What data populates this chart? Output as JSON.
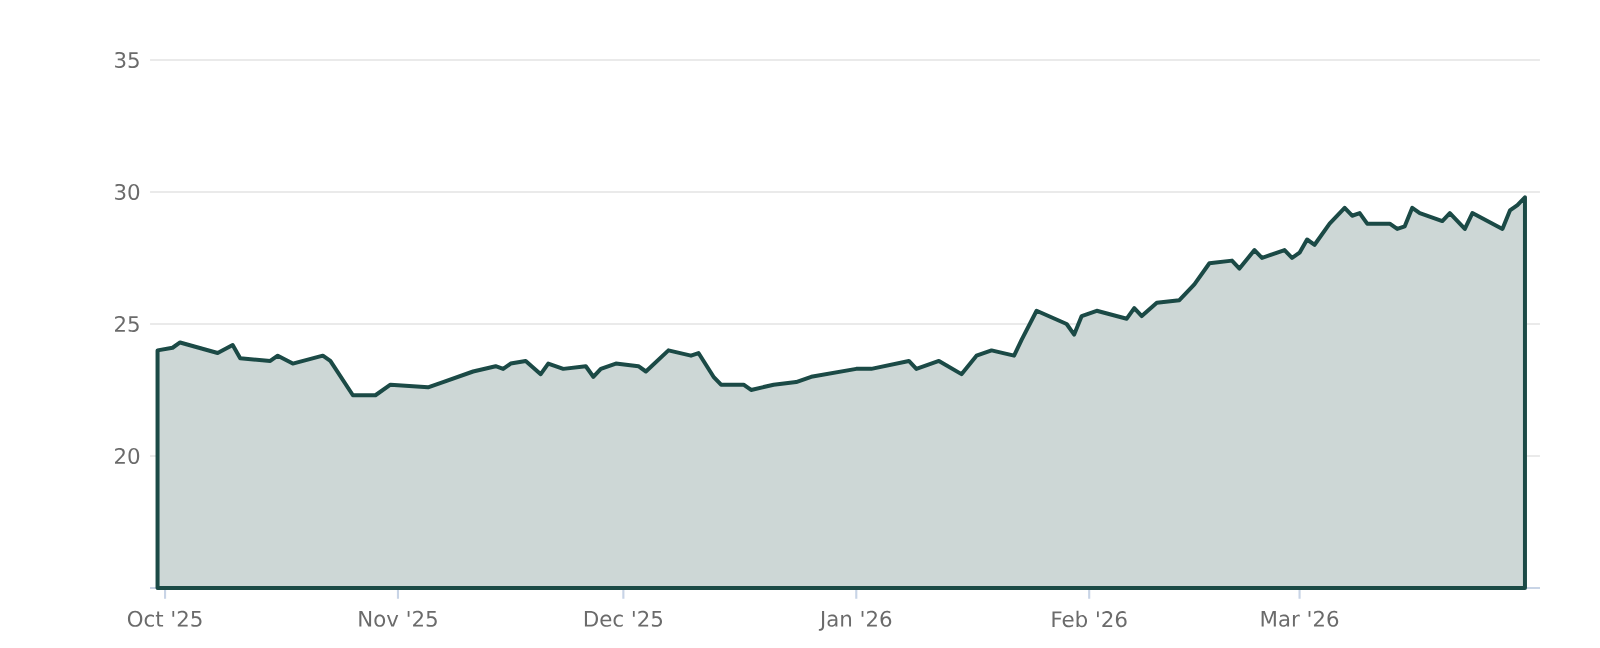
{
  "chart_data": {
    "type": "area",
    "x": [
      "2025-09-30",
      "2025-10-02",
      "2025-10-03",
      "2025-10-08",
      "2025-10-10",
      "2025-10-11",
      "2025-10-15",
      "2025-10-16",
      "2025-10-18",
      "2025-10-22",
      "2025-10-23",
      "2025-10-26",
      "2025-10-29",
      "2025-10-31",
      "2025-11-05",
      "2025-11-07",
      "2025-11-11",
      "2025-11-14",
      "2025-11-15",
      "2025-11-16",
      "2025-11-18",
      "2025-11-20",
      "2025-11-21",
      "2025-11-23",
      "2025-11-26",
      "2025-11-27",
      "2025-11-28",
      "2025-11-30",
      "2025-12-03",
      "2025-12-04",
      "2025-12-07",
      "2025-12-10",
      "2025-12-11",
      "2025-12-13",
      "2025-12-14",
      "2025-12-17",
      "2025-12-18",
      "2025-12-21",
      "2025-12-24",
      "2025-12-26",
      "2026-01-01",
      "2026-01-03",
      "2026-01-08",
      "2026-01-09",
      "2026-01-12",
      "2026-01-15",
      "2026-01-17",
      "2026-01-19",
      "2026-01-22",
      "2026-01-23",
      "2026-01-25",
      "2026-01-29",
      "2026-01-30",
      "2026-01-31",
      "2026-02-02",
      "2026-02-06",
      "2026-02-07",
      "2026-02-08",
      "2026-02-10",
      "2026-02-13",
      "2026-02-15",
      "2026-02-17",
      "2026-02-20",
      "2026-02-21",
      "2026-02-23",
      "2026-02-24",
      "2026-02-27",
      "2026-02-28",
      "2026-03-01",
      "2026-03-02",
      "2026-03-03",
      "2026-03-05",
      "2026-03-07",
      "2026-03-08",
      "2026-03-09",
      "2026-03-10",
      "2026-03-13",
      "2026-03-14",
      "2026-03-15",
      "2026-03-16",
      "2026-03-17",
      "2026-03-20",
      "2026-03-21",
      "2026-03-23",
      "2026-03-24",
      "2026-03-28",
      "2026-03-29",
      "2026-03-30",
      "2026-03-31"
    ],
    "values": [
      24.0,
      24.1,
      24.3,
      23.9,
      24.2,
      23.7,
      23.6,
      23.8,
      23.5,
      23.8,
      23.6,
      22.3,
      22.3,
      22.7,
      22.6,
      22.8,
      23.2,
      23.4,
      23.3,
      23.5,
      23.6,
      23.1,
      23.5,
      23.3,
      23.4,
      23.0,
      23.3,
      23.5,
      23.4,
      23.2,
      24.0,
      23.8,
      23.9,
      23.0,
      22.7,
      22.7,
      22.5,
      22.7,
      22.8,
      23.0,
      23.3,
      23.3,
      23.6,
      23.3,
      23.6,
      23.1,
      23.8,
      24.0,
      23.8,
      24.4,
      25.5,
      25.0,
      24.6,
      25.3,
      25.5,
      25.2,
      25.6,
      25.3,
      25.8,
      25.9,
      26.5,
      27.3,
      27.4,
      27.1,
      27.8,
      27.5,
      27.8,
      27.5,
      27.7,
      28.2,
      28.0,
      28.8,
      29.4,
      29.1,
      29.2,
      28.8,
      28.8,
      28.6,
      28.7,
      29.4,
      29.2,
      28.9,
      29.2,
      28.6,
      29.2,
      28.6,
      29.3,
      29.5,
      29.8
    ],
    "color": "#1b4a46",
    "xlim": [
      "2025-09-29",
      "2026-04-02"
    ],
    "xticks": [
      {
        "value": "2025-10-01",
        "label": "Oct '25"
      },
      {
        "value": "2025-11-01",
        "label": "Nov '25"
      },
      {
        "value": "2025-12-01",
        "label": "Dec '25"
      },
      {
        "value": "2026-01-01",
        "label": "Jan '26"
      },
      {
        "value": "2026-02-01",
        "label": "Feb '26"
      },
      {
        "value": "2026-03-01",
        "label": "Mar '26"
      }
    ],
    "ylim": [
      15,
      35
    ],
    "yticks": [
      20,
      25,
      30,
      35
    ],
    "grid": "y"
  }
}
